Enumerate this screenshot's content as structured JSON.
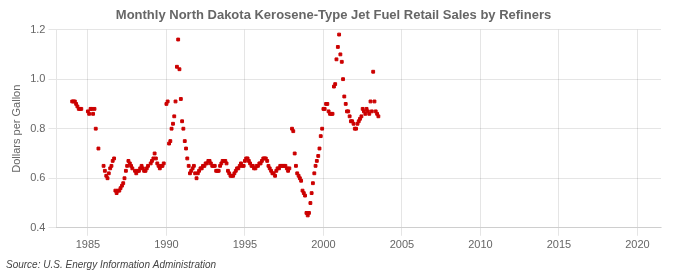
{
  "chart_data": {
    "type": "scatter",
    "title": "Monthly North Dakota Kerosene-Type Jet Fuel Retail Sales by Refiners",
    "ylabel": "Dollars per Gallon",
    "source": "Source: U.S. Energy Information Administration",
    "xlim": [
      1983.0,
      2021.5
    ],
    "ylim": [
      0.4,
      1.2
    ],
    "xticks": [
      1985,
      1990,
      1995,
      2000,
      2005,
      2010,
      2015,
      2020
    ],
    "yticks": [
      0.4,
      0.6,
      0.8,
      {
        "value": 1.0,
        "label": "1.0"
      },
      1.2
    ],
    "grid": true,
    "color": "#cc0000",
    "marker": "square",
    "x": [
      1984.0,
      1984.08,
      1984.17,
      1984.25,
      1984.33,
      1984.42,
      1984.5,
      1984.58,
      1985.0,
      1985.08,
      1985.17,
      1985.25,
      1985.33,
      1985.42,
      1985.5,
      1985.67,
      1986.0,
      1986.08,
      1986.17,
      1986.25,
      1986.33,
      1986.42,
      1986.5,
      1986.58,
      1986.67,
      1986.75,
      1986.83,
      1986.92,
      1987.0,
      1987.08,
      1987.17,
      1987.25,
      1987.33,
      1987.42,
      1987.5,
      1987.58,
      1987.67,
      1987.75,
      1987.83,
      1988.0,
      1988.08,
      1988.17,
      1988.25,
      1988.33,
      1988.42,
      1988.5,
      1988.58,
      1988.67,
      1988.75,
      1988.83,
      1989.0,
      1989.08,
      1989.17,
      1989.25,
      1989.33,
      1989.42,
      1989.5,
      1989.58,
      1989.67,
      1989.75,
      1989.83,
      1990.0,
      1990.08,
      1990.17,
      1990.25,
      1990.33,
      1990.42,
      1990.5,
      1990.58,
      1990.67,
      1990.75,
      1990.83,
      1990.92,
      1991.0,
      1991.08,
      1991.17,
      1991.25,
      1991.33,
      1991.42,
      1991.5,
      1991.58,
      1991.67,
      1991.75,
      1991.83,
      1991.92,
      1992.0,
      1992.08,
      1992.17,
      1992.25,
      1992.33,
      1992.42,
      1992.5,
      1992.58,
      1992.67,
      1992.75,
      1992.83,
      1992.92,
      1993.0,
      1993.08,
      1993.17,
      1993.25,
      1993.33,
      1993.42,
      1993.5,
      1993.58,
      1993.67,
      1993.75,
      1993.83,
      1993.92,
      1994.0,
      1994.08,
      1994.17,
      1994.25,
      1994.33,
      1994.42,
      1994.5,
      1994.58,
      1994.67,
      1994.75,
      1994.83,
      1994.92,
      1995.0,
      1995.08,
      1995.17,
      1995.25,
      1995.33,
      1995.42,
      1995.5,
      1995.58,
      1995.67,
      1995.75,
      1995.83,
      1995.92,
      1996.0,
      1996.08,
      1996.17,
      1996.25,
      1996.33,
      1996.42,
      1996.5,
      1996.58,
      1996.67,
      1996.75,
      1996.83,
      1996.92,
      1997.0,
      1997.08,
      1997.17,
      1997.25,
      1997.33,
      1997.42,
      1997.5,
      1997.58,
      1997.67,
      1997.75,
      1997.83,
      1998.0,
      1998.08,
      1998.17,
      1998.25,
      1998.33,
      1998.42,
      1998.5,
      1998.58,
      1998.67,
      1998.75,
      1998.83,
      1998.92,
      1999.0,
      1999.08,
      1999.17,
      1999.25,
      1999.33,
      1999.42,
      1999.5,
      1999.58,
      1999.67,
      1999.75,
      1999.83,
      1999.92,
      2000.0,
      2000.08,
      2000.17,
      2000.25,
      2000.33,
      2000.42,
      2000.5,
      2000.58,
      2000.67,
      2000.75,
      2000.83,
      2000.92,
      2001.0,
      2001.08,
      2001.17,
      2001.25,
      2001.33,
      2001.42,
      2001.5,
      2001.58,
      2001.67,
      2001.75,
      2001.83,
      2001.92,
      2002.0,
      2002.08,
      2002.17,
      2002.25,
      2002.33,
      2002.42,
      2002.5,
      2002.58,
      2002.67,
      2002.75,
      2002.83,
      2002.92,
      2003.0,
      2003.08,
      2003.17,
      2003.25,
      2003.33,
      2003.42,
      2003.5
    ],
    "values": [
      0.91,
      0.91,
      0.91,
      0.9,
      0.89,
      0.88,
      0.88,
      0.88,
      0.87,
      0.86,
      0.88,
      0.88,
      0.86,
      0.88,
      0.8,
      0.72,
      0.65,
      0.63,
      0.61,
      0.6,
      0.62,
      0.64,
      0.65,
      0.67,
      0.68,
      0.55,
      0.54,
      0.55,
      0.55,
      0.56,
      0.57,
      0.58,
      0.6,
      0.63,
      0.65,
      0.67,
      0.66,
      0.65,
      0.64,
      0.63,
      0.62,
      0.63,
      0.63,
      0.64,
      0.65,
      0.64,
      0.63,
      0.63,
      0.64,
      0.65,
      0.66,
      0.67,
      0.68,
      0.7,
      0.68,
      0.66,
      0.65,
      0.64,
      0.65,
      0.65,
      0.66,
      0.9,
      0.91,
      0.74,
      0.75,
      0.8,
      0.82,
      0.85,
      0.91,
      1.05,
      1.16,
      1.04,
      0.92,
      0.83,
      0.8,
      0.75,
      0.72,
      0.68,
      0.65,
      0.62,
      0.63,
      0.64,
      0.65,
      0.62,
      0.6,
      0.62,
      0.63,
      0.64,
      0.64,
      0.65,
      0.65,
      0.66,
      0.66,
      0.67,
      0.67,
      0.66,
      0.65,
      0.65,
      0.65,
      0.63,
      0.63,
      0.63,
      0.65,
      0.66,
      0.67,
      0.67,
      0.67,
      0.66,
      0.63,
      0.62,
      0.61,
      0.61,
      0.61,
      0.62,
      0.63,
      0.64,
      0.64,
      0.65,
      0.66,
      0.65,
      0.65,
      0.67,
      0.68,
      0.68,
      0.67,
      0.66,
      0.65,
      0.65,
      0.64,
      0.64,
      0.65,
      0.65,
      0.66,
      0.66,
      0.67,
      0.68,
      0.68,
      0.68,
      0.67,
      0.65,
      0.64,
      0.63,
      0.62,
      0.62,
      0.61,
      0.63,
      0.64,
      0.64,
      0.65,
      0.65,
      0.65,
      0.65,
      0.65,
      0.64,
      0.63,
      0.64,
      0.8,
      0.79,
      0.7,
      0.65,
      0.62,
      0.61,
      0.6,
      0.59,
      0.55,
      0.54,
      0.53,
      0.46,
      0.45,
      0.46,
      0.5,
      0.54,
      0.58,
      0.62,
      0.65,
      0.67,
      0.69,
      0.72,
      0.77,
      0.8,
      0.88,
      0.88,
      0.9,
      0.9,
      0.87,
      0.86,
      0.86,
      0.86,
      0.97,
      0.98,
      1.08,
      1.13,
      1.18,
      1.1,
      1.07,
      1.0,
      0.93,
      0.9,
      0.87,
      0.87,
      0.85,
      0.83,
      0.83,
      0.82,
      0.8,
      0.8,
      0.82,
      0.83,
      0.84,
      0.85,
      0.88,
      0.87,
      0.86,
      0.88,
      0.87,
      0.86,
      0.91,
      0.87,
      1.03,
      0.91,
      0.87,
      0.86,
      0.85
    ]
  }
}
